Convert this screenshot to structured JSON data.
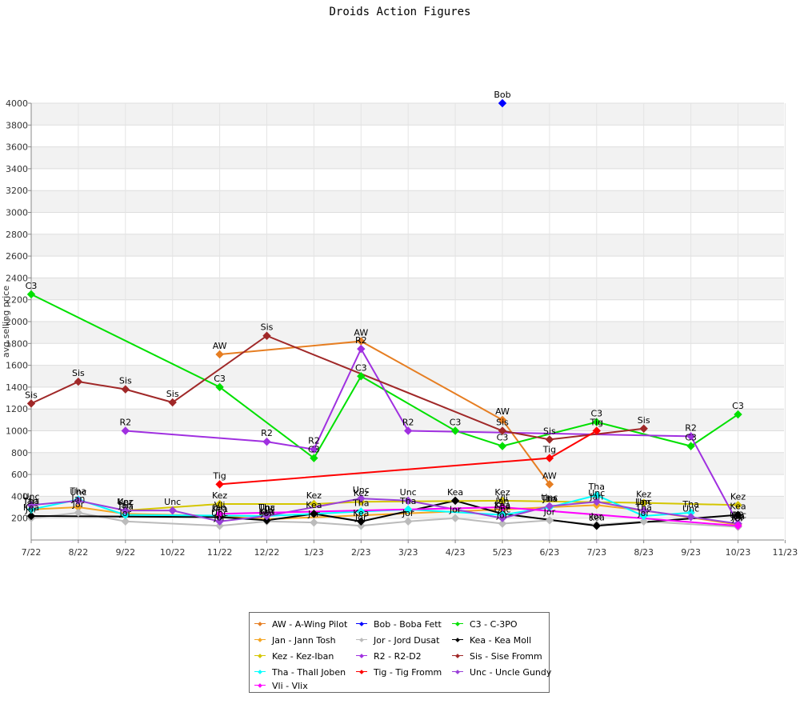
{
  "chart_data": {
    "type": "line",
    "title": "Droids Action Figures",
    "ylabel": "avg selling price",
    "xlabel": "",
    "ylim": [
      0,
      4000
    ],
    "yticks": [
      200,
      400,
      600,
      800,
      1000,
      1200,
      1400,
      1600,
      1800,
      2000,
      2200,
      2400,
      2600,
      2800,
      3000,
      3200,
      3400,
      3600,
      3800,
      4000
    ],
    "x_ticks": [
      "7/22",
      "8/22",
      "9/22",
      "10/22",
      "11/22",
      "12/22",
      "1/23",
      "2/23",
      "3/23",
      "4/23",
      "5/23",
      "6/23",
      "7/23",
      "8/23",
      "9/23",
      "10/23",
      "11/23"
    ],
    "grid": true,
    "legend_position": "bottom",
    "series": [
      {
        "code": "AW",
        "name": "AW - A-Wing Pilot",
        "color": "#e67e22",
        "points": [
          [
            4,
            1700
          ],
          [
            7,
            1820
          ],
          [
            10,
            1100
          ],
          [
            11,
            510
          ]
        ]
      },
      {
        "code": "Bob",
        "name": "Bob - Boba Fett",
        "color": "#0000ff",
        "points": [
          [
            10,
            4000
          ]
        ]
      },
      {
        "code": "C3",
        "name": "C3 - C-3PO",
        "color": "#00e000",
        "points": [
          [
            0,
            2250
          ],
          [
            4,
            1400
          ],
          [
            6,
            750
          ],
          [
            7,
            1500
          ],
          [
            9,
            1000
          ],
          [
            10,
            860
          ],
          [
            12,
            1080
          ],
          [
            14,
            860
          ],
          [
            15,
            1150
          ]
        ]
      },
      {
        "code": "Jan",
        "name": "Jan - Jann Tosh",
        "color": "#f5a623",
        "points": [
          [
            0,
            280
          ],
          [
            1,
            300
          ],
          [
            2,
            240
          ],
          [
            4,
            220
          ],
          [
            5,
            190
          ],
          [
            10,
            280
          ],
          [
            11,
            300
          ],
          [
            12,
            320
          ],
          [
            13,
            270
          ],
          [
            15,
            140
          ]
        ]
      },
      {
        "code": "Jor",
        "name": "Jor - Jord Dusat",
        "color": "#bbbbbb",
        "points": [
          [
            0,
            200
          ],
          [
            1,
            250
          ],
          [
            2,
            170
          ],
          [
            4,
            130
          ],
          [
            5,
            170
          ],
          [
            6,
            160
          ],
          [
            7,
            130
          ],
          [
            8,
            170
          ],
          [
            9,
            200
          ],
          [
            10,
            150
          ],
          [
            11,
            180
          ],
          [
            12,
            140
          ],
          [
            13,
            170
          ],
          [
            15,
            120
          ]
        ]
      },
      {
        "code": "Kea",
        "name": "Kea - Kea Moll",
        "color": "#000000",
        "points": [
          [
            0,
            220
          ],
          [
            4,
            210
          ],
          [
            5,
            180
          ],
          [
            6,
            240
          ],
          [
            7,
            170
          ],
          [
            9,
            360
          ],
          [
            10,
            240
          ],
          [
            12,
            130
          ],
          [
            15,
            230
          ]
        ]
      },
      {
        "code": "Kez",
        "name": "Kez - Kez-Iban",
        "color": "#d4c600",
        "points": [
          [
            2,
            270
          ],
          [
            4,
            330
          ],
          [
            6,
            330
          ],
          [
            7,
            350
          ],
          [
            10,
            360
          ],
          [
            13,
            340
          ],
          [
            15,
            320
          ]
        ]
      },
      {
        "code": "R2",
        "name": "R2 - R2-D2",
        "color": "#a030e0",
        "points": [
          [
            2,
            1000
          ],
          [
            5,
            900
          ],
          [
            6,
            830
          ],
          [
            7,
            1750
          ],
          [
            8,
            1000
          ],
          [
            14,
            950
          ],
          [
            15,
            150
          ]
        ]
      },
      {
        "code": "Sis",
        "name": "Sis - Sise Fromm",
        "color": "#a02828",
        "points": [
          [
            0,
            1250
          ],
          [
            1,
            1450
          ],
          [
            2,
            1380
          ],
          [
            3,
            1260
          ],
          [
            5,
            1870
          ],
          [
            10,
            1000
          ],
          [
            11,
            920
          ],
          [
            13,
            1020
          ]
        ]
      },
      {
        "code": "Tha",
        "name": "Tha - Thall Joben",
        "color": "#00ffff",
        "points": [
          [
            0,
            280
          ],
          [
            1,
            370
          ],
          [
            2,
            230
          ],
          [
            5,
            220
          ],
          [
            7,
            260
          ],
          [
            8,
            280
          ],
          [
            10,
            230
          ],
          [
            11,
            300
          ],
          [
            12,
            410
          ],
          [
            13,
            220
          ],
          [
            14,
            250
          ]
        ]
      },
      {
        "code": "Tig",
        "name": "Tig - Tig Fromm",
        "color": "#ff0000",
        "points": [
          [
            4,
            510
          ],
          [
            11,
            750
          ],
          [
            12,
            1000
          ]
        ]
      },
      {
        "code": "Unc",
        "name": "Unc - Uncle Gundy",
        "color": "#9a40d8",
        "points": [
          [
            0,
            320
          ],
          [
            1,
            360
          ],
          [
            2,
            270
          ],
          [
            3,
            270
          ],
          [
            4,
            170
          ],
          [
            5,
            220
          ],
          [
            7,
            380
          ],
          [
            8,
            360
          ],
          [
            10,
            200
          ],
          [
            11,
            310
          ],
          [
            12,
            350
          ],
          [
            13,
            270
          ],
          [
            14,
            210
          ],
          [
            15,
            150
          ]
        ]
      },
      {
        "code": "Vli",
        "name": "Vli - Vlix",
        "color": "#ff00ff",
        "points": [
          [
            4,
            240
          ],
          [
            10,
            300
          ],
          [
            15,
            130
          ]
        ]
      }
    ]
  }
}
